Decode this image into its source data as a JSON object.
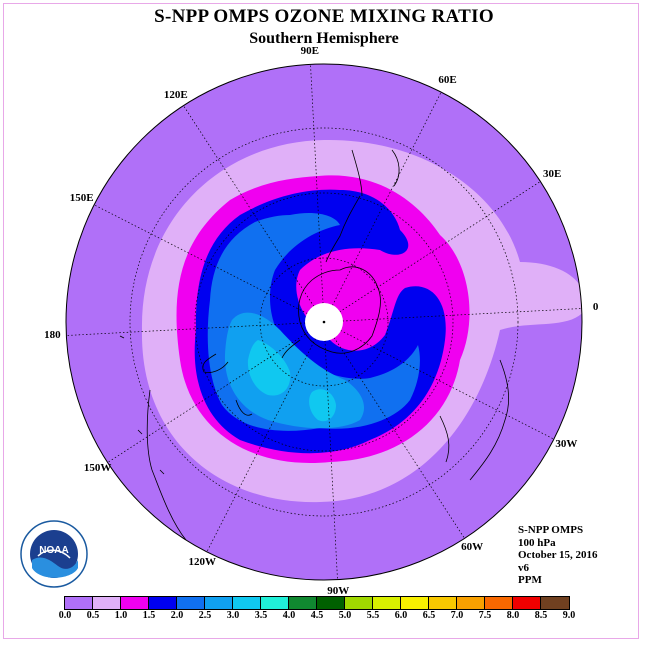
{
  "title": "S-NPP OMPS OZONE MIXING RATIO",
  "subtitle": "Southern Hemisphere",
  "longitude_labels": [
    {
      "text": "90W",
      "angle": -90
    },
    {
      "text": "60W",
      "angle": -60
    },
    {
      "text": "30W",
      "angle": -30
    },
    {
      "text": "0",
      "angle": 0
    },
    {
      "text": "30E",
      "angle": 30
    },
    {
      "text": "60E",
      "angle": 60
    },
    {
      "text": "90E",
      "angle": 90
    },
    {
      "text": "120E",
      "angle": 120
    },
    {
      "text": "150E",
      "angle": 150
    },
    {
      "text": "180",
      "angle": 180
    },
    {
      "text": "150W",
      "angle": 210
    },
    {
      "text": "120W",
      "angle": 240
    }
  ],
  "info": {
    "instrument": "S-NPP OMPS",
    "level": "100 hPa",
    "date": "October 15, 2016",
    "version": "v6",
    "units": "PPM"
  },
  "logo": {
    "text": "NOAA"
  },
  "colorbar": {
    "ticks": [
      "0.0",
      "0.5",
      "1.0",
      "1.5",
      "2.0",
      "2.5",
      "3.0",
      "3.5",
      "4.0",
      "4.5",
      "5.0",
      "5.5",
      "6.0",
      "6.5",
      "7.0",
      "7.5",
      "8.0",
      "8.5",
      "9.0"
    ],
    "colors": [
      "#b070f8",
      "#e0b0f8",
      "#f000f0",
      "#0000f0",
      "#1070f0",
      "#10a0f0",
      "#10c8f0",
      "#20f0d8",
      "#108830",
      "#006000",
      "#a0d800",
      "#d8f000",
      "#f8f000",
      "#f8c800",
      "#f8a000",
      "#f86800",
      "#f00000",
      "#704020"
    ]
  },
  "chart_data": {
    "type": "heatmap",
    "title": "S-NPP OMPS OZONE MIXING RATIO",
    "subtitle": "Southern Hemisphere",
    "projection": "polar stereographic",
    "pressure_level": "100 hPa",
    "units": "PPM",
    "date": "October 15, 2016",
    "value_range": [
      0.0,
      9.0
    ],
    "contour_interval": 0.5,
    "observed_ranges": [
      "0.0-0.5",
      "0.5-1.0",
      "1.0-1.5",
      "1.5-2.0",
      "2.0-2.5",
      "2.5-3.0",
      "3.0-3.5"
    ],
    "legend_placement": "bottom"
  }
}
